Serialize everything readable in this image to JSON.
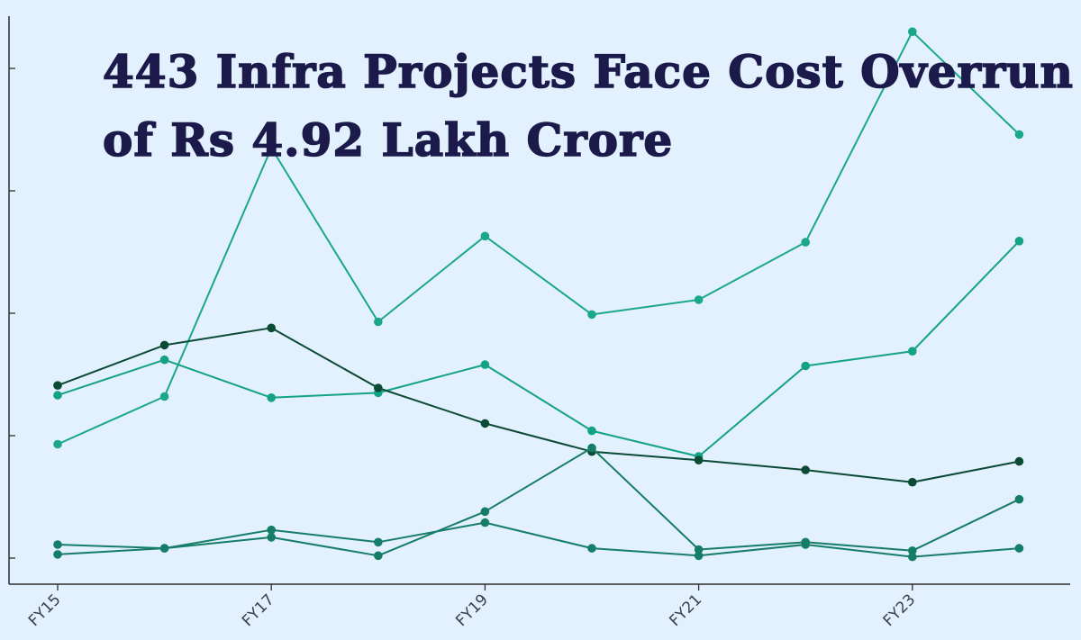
{
  "chart_data": {
    "type": "line",
    "title": "443 Infra Projects Face Cost Overrun of Rs 4.92 Lakh Crore",
    "title_lines": [
      "443 Infra Projects Face Cost Overrun",
      "of Rs 4.92 Lakh Crore"
    ],
    "xlabel": "",
    "ylabel": "",
    "x": [
      "FY15",
      "FY16",
      "FY17",
      "FY18",
      "FY19",
      "FY20",
      "FY21",
      "FY22",
      "FY23",
      "FY24"
    ],
    "x_tick_labels": [
      "FY15",
      "FY17",
      "FY19",
      "FY21",
      "FY23"
    ],
    "y_tick_values": [
      0,
      1,
      2,
      3,
      4
    ],
    "ylim": [
      -0.2,
      4.6
    ],
    "grid": false,
    "legend": "none",
    "series": [
      {
        "color": "#1ba88a",
        "values": [
          0.93,
          1.32,
          3.35,
          1.93,
          2.63,
          1.99,
          2.11,
          2.58,
          4.3,
          3.46
        ]
      },
      {
        "color": "#14a286",
        "values": [
          1.33,
          1.62,
          1.31,
          1.35,
          1.58,
          1.04,
          0.83,
          1.57,
          1.69,
          2.59
        ]
      },
      {
        "color": "#0b4a35",
        "values": [
          1.41,
          1.74,
          1.88,
          1.39,
          1.1,
          0.87,
          0.8,
          0.72,
          0.62,
          0.79
        ]
      },
      {
        "color": "#157d66",
        "values": [
          0.03,
          0.08,
          0.17,
          0.02,
          0.38,
          0.9,
          0.07,
          0.13,
          0.06,
          0.48
        ]
      },
      {
        "color": "#167e68",
        "values": [
          0.11,
          0.08,
          0.23,
          0.13,
          0.29,
          0.08,
          0.02,
          0.11,
          0.01,
          0.08
        ]
      }
    ]
  }
}
